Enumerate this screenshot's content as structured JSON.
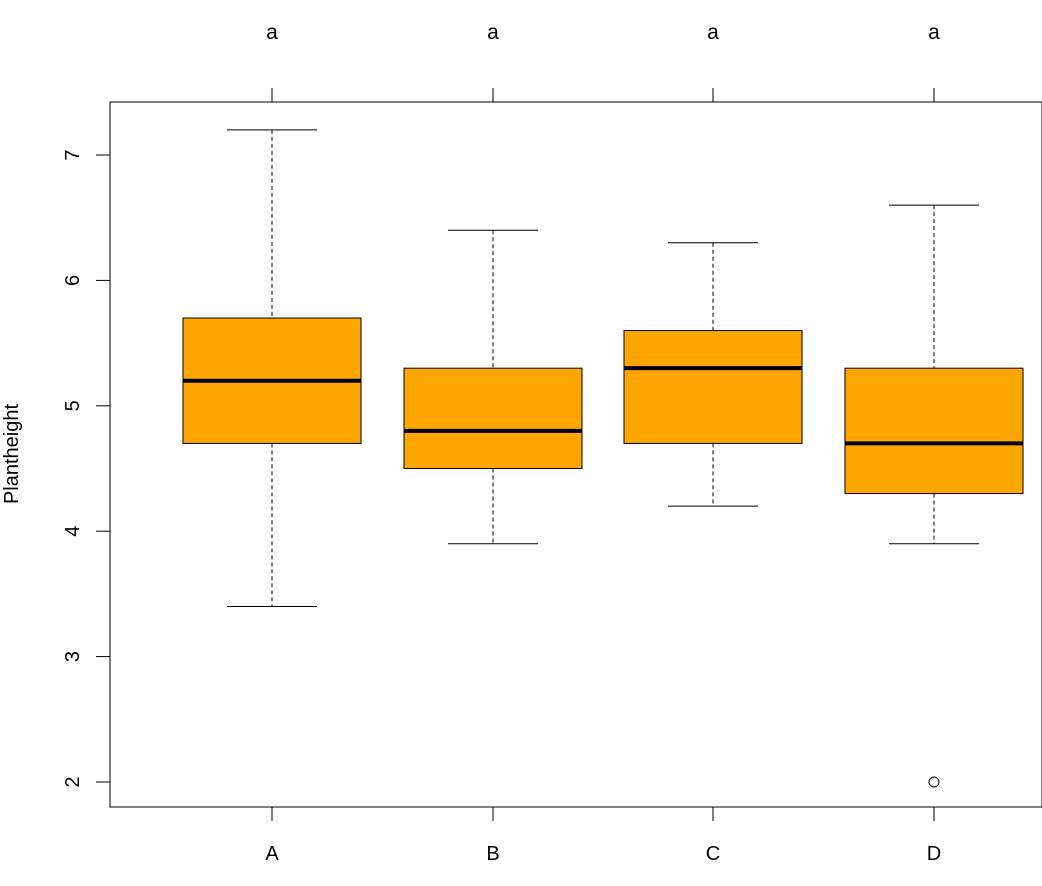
{
  "chart_data": {
    "type": "boxplot",
    "title": "",
    "xlabel": "",
    "ylabel": "Plantheight",
    "ylim": [
      2,
      7.4
    ],
    "y_ticks": [
      2,
      3,
      4,
      5,
      6,
      7
    ],
    "y_tick_labels": [
      "2",
      "3",
      "4",
      "5",
      "6",
      "7"
    ],
    "categories": [
      "A",
      "B",
      "C",
      "D"
    ],
    "significance_letters": [
      "a",
      "a",
      "a",
      "a"
    ],
    "box_color": "#FFA500",
    "grid": false,
    "legend": "none",
    "boxes": [
      {
        "category": "A",
        "whisker_low": 3.4,
        "q1": 4.7,
        "median": 5.2,
        "q3": 5.7,
        "whisker_high": 7.2,
        "outliers": []
      },
      {
        "category": "B",
        "whisker_low": 3.9,
        "q1": 4.5,
        "median": 4.8,
        "q3": 5.3,
        "whisker_high": 6.4,
        "outliers": []
      },
      {
        "category": "C",
        "whisker_low": 4.2,
        "q1": 4.7,
        "median": 5.3,
        "q3": 5.6,
        "whisker_high": 6.3,
        "outliers": []
      },
      {
        "category": "D",
        "whisker_low": 3.9,
        "q1": 4.3,
        "median": 4.7,
        "q3": 5.3,
        "whisker_high": 6.6,
        "outliers": [
          2.0
        ]
      }
    ]
  }
}
